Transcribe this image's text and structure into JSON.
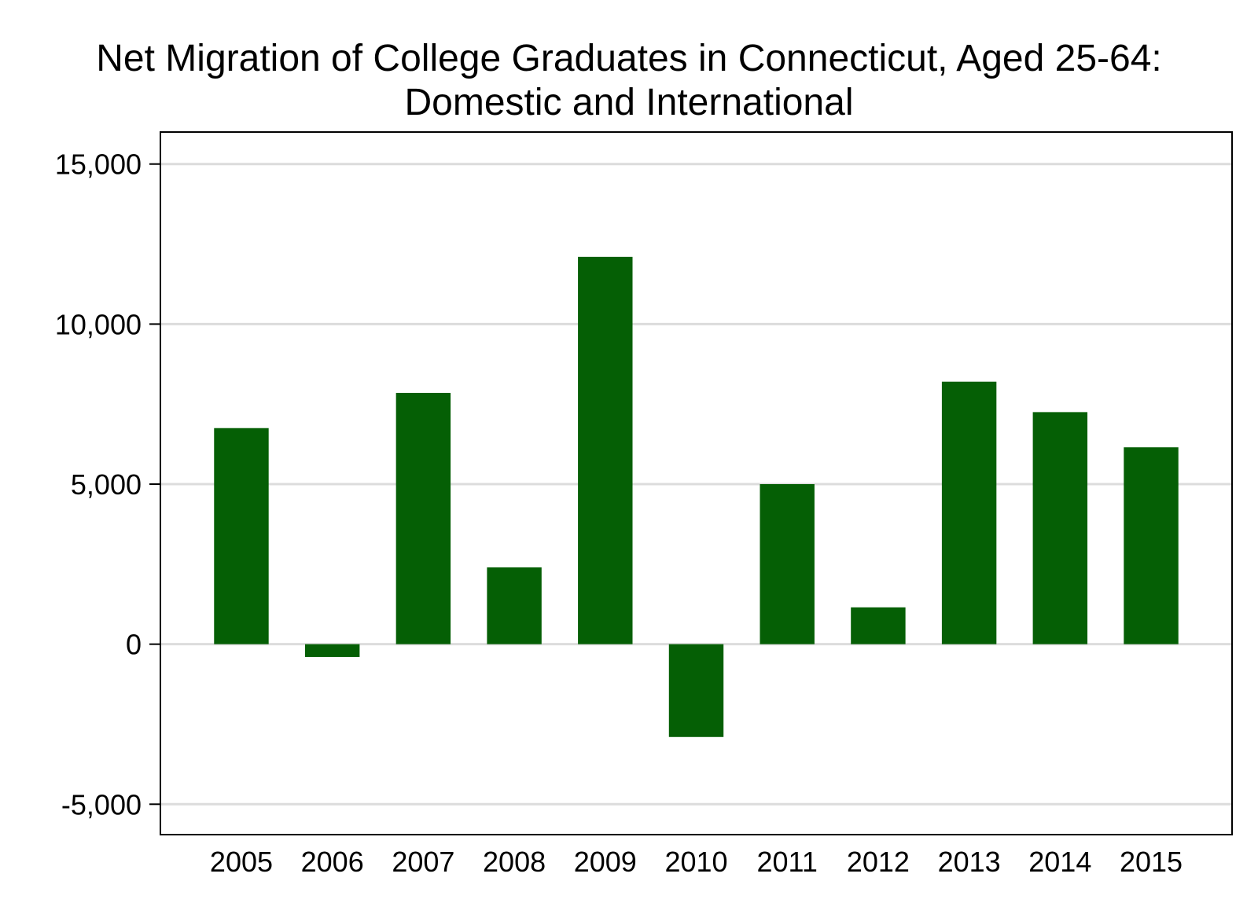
{
  "chart_data": {
    "type": "bar",
    "title_lines": [
      "Net Migration of College Graduates in Connecticut, Aged 25-64:",
      "Domestic and International"
    ],
    "xlabel": "",
    "ylabel": "",
    "categories": [
      "2005",
      "2006",
      "2007",
      "2008",
      "2009",
      "2010",
      "2011",
      "2012",
      "2013",
      "2014",
      "2015"
    ],
    "values": [
      6750,
      -400,
      7850,
      2400,
      12100,
      -2900,
      5000,
      1150,
      8200,
      7250,
      6150
    ],
    "ylim": [
      -5950,
      16000
    ],
    "yticks": [
      -5000,
      0,
      5000,
      10000,
      15000
    ],
    "ytick_labels": [
      "-5,000",
      "0",
      "5,000",
      "10,000",
      "15,000"
    ],
    "grid": true,
    "legend": "none",
    "colors": {
      "bar": "#055f05",
      "grid": "#dcdcdc",
      "frame": "#000000",
      "text": "#000000"
    }
  }
}
